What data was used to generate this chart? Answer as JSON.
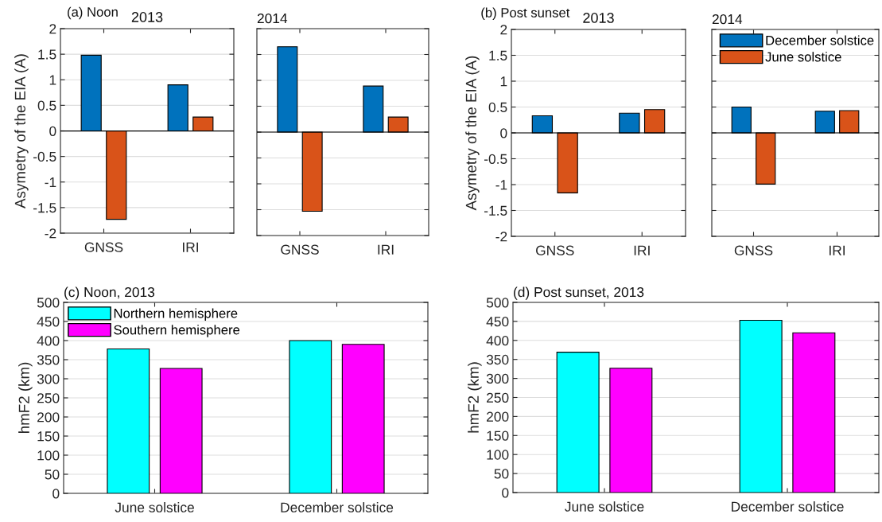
{
  "chart_data": [
    {
      "type": "bar",
      "title": "2013",
      "annotations": [
        "(a) Noon"
      ],
      "ylabel": "Asymetry of the EIA (A)",
      "categories": [
        "GNSS",
        "IRI"
      ],
      "ylim": [
        -2,
        2
      ],
      "yticks": [
        -2,
        -1.5,
        -1,
        -0.5,
        0,
        0.5,
        1,
        1.5,
        2
      ],
      "grid": "y",
      "ref_lines": [
        {
          "axis": "y",
          "value": 0,
          "color": "#000000"
        }
      ],
      "series": [
        {
          "color": "#0072bd",
          "values": [
            1.48,
            0.9
          ]
        },
        {
          "color": "#d95319",
          "values": [
            -1.73,
            0.27
          ]
        }
      ]
    },
    {
      "type": "bar",
      "title": "2014",
      "categories": [
        "GNSS",
        "IRI"
      ],
      "ylim": [
        -2,
        2
      ],
      "yticks": [
        -2,
        -1.5,
        -1,
        -0.5,
        0,
        0.5,
        1,
        1.5,
        2
      ],
      "tick_labels": "x",
      "grid": "y",
      "ref_lines": [
        {
          "axis": "y",
          "value": 0,
          "color": "#000000"
        }
      ],
      "series": [
        {
          "color": "#0072bd",
          "values": [
            1.65,
            0.89
          ]
        },
        {
          "color": "#d95319",
          "values": [
            -1.53,
            0.29
          ]
        }
      ]
    },
    {
      "type": "bar",
      "title": "2013",
      "annotations": [
        "(b) Post sunset"
      ],
      "ylabel": "Asymetry of the EIA (A)",
      "categories": [
        "GNSS",
        "IRI"
      ],
      "ylim": [
        -2,
        2
      ],
      "yticks": [
        -2,
        -1.5,
        -1,
        -0.5,
        0,
        0.5,
        1,
        1.5,
        2
      ],
      "grid": "y",
      "ref_lines": [
        {
          "axis": "y",
          "value": 0,
          "color": "#000000"
        }
      ],
      "series": [
        {
          "color": "#0072bd",
          "values": [
            0.33,
            0.38
          ]
        },
        {
          "color": "#d95319",
          "values": [
            -1.16,
            0.45
          ]
        }
      ]
    },
    {
      "type": "bar",
      "title": "2014",
      "categories": [
        "GNSS",
        "IRI"
      ],
      "ylim": [
        -2,
        2
      ],
      "yticks": [
        -2,
        -1.5,
        -1,
        -0.5,
        0,
        0.5,
        1,
        1.5,
        2
      ],
      "tick_labels": "x",
      "grid": "y",
      "legend": "top right",
      "ref_lines": [
        {
          "axis": "y",
          "value": 0,
          "color": "#000000"
        }
      ],
      "series": [
        {
          "name": "December solstice",
          "color": "#0072bd",
          "values": [
            0.5,
            0.42
          ]
        },
        {
          "name": "June solstice",
          "color": "#d95319",
          "values": [
            -0.99,
            0.43
          ]
        }
      ]
    },
    {
      "type": "bar",
      "title": "(c) Noon, 2013",
      "ylabel": "hmF2 (km)",
      "categories": [
        "June solstice",
        "December solstice"
      ],
      "ylim": [
        0,
        500
      ],
      "yticks": [
        0,
        50,
        100,
        150,
        200,
        250,
        300,
        350,
        400,
        450,
        500
      ],
      "grid": "y",
      "legend": "top left",
      "series": [
        {
          "name": "Northern hemisphere",
          "color": "#00ffff",
          "values": [
            378,
            400
          ]
        },
        {
          "name": "Southern hemisphere",
          "color": "#ff00ff",
          "values": [
            327,
            390
          ]
        }
      ]
    },
    {
      "type": "bar",
      "title": "(d) Post sunset, 2013",
      "ylabel": "hmF2 (km)",
      "categories": [
        "June solstice",
        "December solstice"
      ],
      "ylim": [
        0,
        500
      ],
      "yticks": [
        0,
        50,
        100,
        150,
        200,
        250,
        300,
        350,
        400,
        450,
        500
      ],
      "grid": "y",
      "series": [
        {
          "color": "#00ffff",
          "values": [
            369,
            453
          ]
        },
        {
          "color": "#ff00ff",
          "values": [
            327,
            420
          ]
        }
      ]
    }
  ]
}
